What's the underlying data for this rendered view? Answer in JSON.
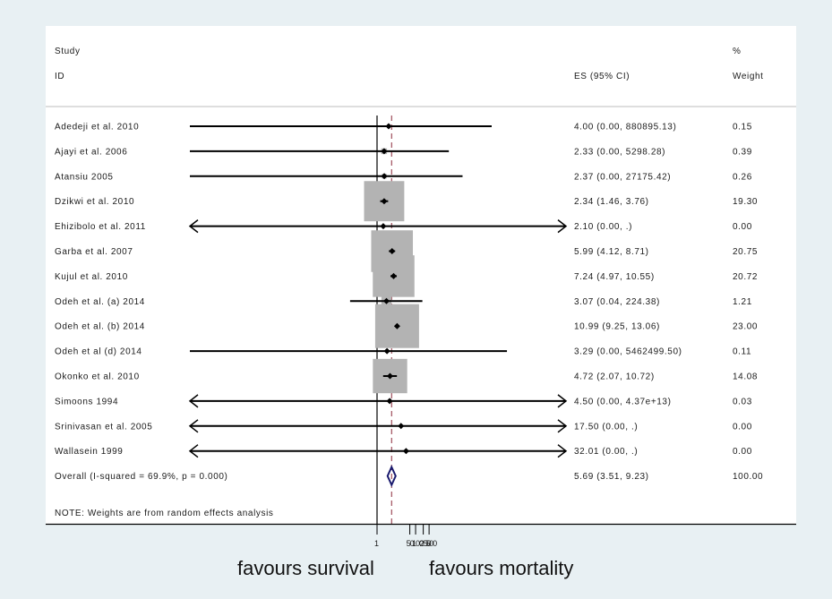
{
  "chart_data": {
    "type": "forest",
    "title": "",
    "headers": {
      "study_line1": "Study",
      "study_line2": "ID",
      "es_label": "ES (95% CI)",
      "weight_line1": "%",
      "weight_line2": "Weight"
    },
    "x_scale": "log",
    "null_line": 1,
    "x_ticks": [
      1,
      50,
      100,
      250,
      500
    ],
    "x_tick_labels": [
      "1",
      "50",
      "100",
      "250",
      "500"
    ],
    "xlabel_left": "favours survival",
    "xlabel_right": "favours mortality",
    "studies": [
      {
        "id": "Adedeji et al. 2010",
        "es": 4.0,
        "lower": 0.0,
        "upper": 880895.13,
        "ci_text": "4.00 (0.00, 880895.13)",
        "weight": 0.15,
        "weight_text": "0.15",
        "arrow_left": false,
        "arrow_right": false
      },
      {
        "id": "Ajayi et al. 2006",
        "es": 2.33,
        "lower": 0.0,
        "upper": 5298.28,
        "ci_text": "2.33 (0.00, 5298.28)",
        "weight": 0.39,
        "weight_text": "0.39",
        "arrow_left": false,
        "arrow_right": false
      },
      {
        "id": "Atansiu 2005",
        "es": 2.37,
        "lower": 0.0,
        "upper": 27175.42,
        "ci_text": "2.37 (0.00, 27175.42)",
        "weight": 0.26,
        "weight_text": "0.26",
        "arrow_left": false,
        "arrow_right": false
      },
      {
        "id": "Dzikwi et al. 2010",
        "es": 2.34,
        "lower": 1.46,
        "upper": 3.76,
        "ci_text": "2.34 (1.46, 3.76)",
        "weight": 19.3,
        "weight_text": "19.30",
        "arrow_left": false,
        "arrow_right": false
      },
      {
        "id": "Ehizibolo et al. 2011",
        "es": 2.1,
        "lower": 0.0,
        "upper": null,
        "ci_text": "2.10 (0.00, .)",
        "weight": 0.0,
        "weight_text": "0.00",
        "arrow_left": true,
        "arrow_right": true
      },
      {
        "id": "Garba et al. 2007",
        "es": 5.99,
        "lower": 4.12,
        "upper": 8.71,
        "ci_text": "5.99 (4.12, 8.71)",
        "weight": 20.75,
        "weight_text": "20.75",
        "arrow_left": false,
        "arrow_right": false
      },
      {
        "id": "Kujul et al. 2010",
        "es": 7.24,
        "lower": 4.97,
        "upper": 10.55,
        "ci_text": "7.24 (4.97, 10.55)",
        "weight": 20.72,
        "weight_text": "20.72",
        "arrow_left": false,
        "arrow_right": false
      },
      {
        "id": "Odeh et al. (a) 2014",
        "es": 3.07,
        "lower": 0.04,
        "upper": 224.38,
        "ci_text": "3.07 (0.04, 224.38)",
        "weight": 1.21,
        "weight_text": "1.21",
        "arrow_left": false,
        "arrow_right": false
      },
      {
        "id": "Odeh et al. (b) 2014",
        "es": 10.99,
        "lower": 9.25,
        "upper": 13.06,
        "ci_text": "10.99 (9.25, 13.06)",
        "weight": 23.0,
        "weight_text": "23.00",
        "arrow_left": false,
        "arrow_right": false
      },
      {
        "id": "Odeh et al (d) 2014",
        "es": 3.29,
        "lower": 0.0,
        "upper": 5462499.5,
        "ci_text": "3.29 (0.00, 5462499.50)",
        "weight": 0.11,
        "weight_text": "0.11",
        "arrow_left": false,
        "arrow_right": false
      },
      {
        "id": "Okonko et al. 2010",
        "es": 4.72,
        "lower": 2.07,
        "upper": 10.72,
        "ci_text": "4.72 (2.07, 10.72)",
        "weight": 14.08,
        "weight_text": "14.08",
        "arrow_left": false,
        "arrow_right": false
      },
      {
        "id": "Simoons 1994",
        "es": 4.5,
        "lower": 0.0,
        "upper": 43700000000000.0,
        "ci_text": "4.50 (0.00, 4.37e+13)",
        "weight": 0.03,
        "weight_text": "0.03",
        "arrow_left": true,
        "arrow_right": true
      },
      {
        "id": "Srinivasan et al. 2005",
        "es": 17.5,
        "lower": 0.0,
        "upper": null,
        "ci_text": "17.50 (0.00, .)",
        "weight": 0.0,
        "weight_text": "0.00",
        "arrow_left": true,
        "arrow_right": true
      },
      {
        "id": "Wallasein 1999",
        "es": 32.01,
        "lower": 0.0,
        "upper": null,
        "ci_text": "32.01 (0.00, .)",
        "weight": 0.0,
        "weight_text": "0.00",
        "arrow_left": true,
        "arrow_right": true
      }
    ],
    "overall": {
      "id": "Overall  (I-squared = 69.9%, p = 0.000)",
      "es": 5.69,
      "lower": 3.51,
      "upper": 9.23,
      "ci_text": "5.69 (3.51, 9.23)",
      "weight_text": "100.00"
    },
    "note": "NOTE: Weights are from random effects analysis",
    "colors": {
      "background": "#e8f0f3",
      "plot_background": "#ffffff",
      "weight_box": "#b3b3b3",
      "overall_line": "#8b2a3a",
      "diamond": "#1a1a6e"
    }
  }
}
